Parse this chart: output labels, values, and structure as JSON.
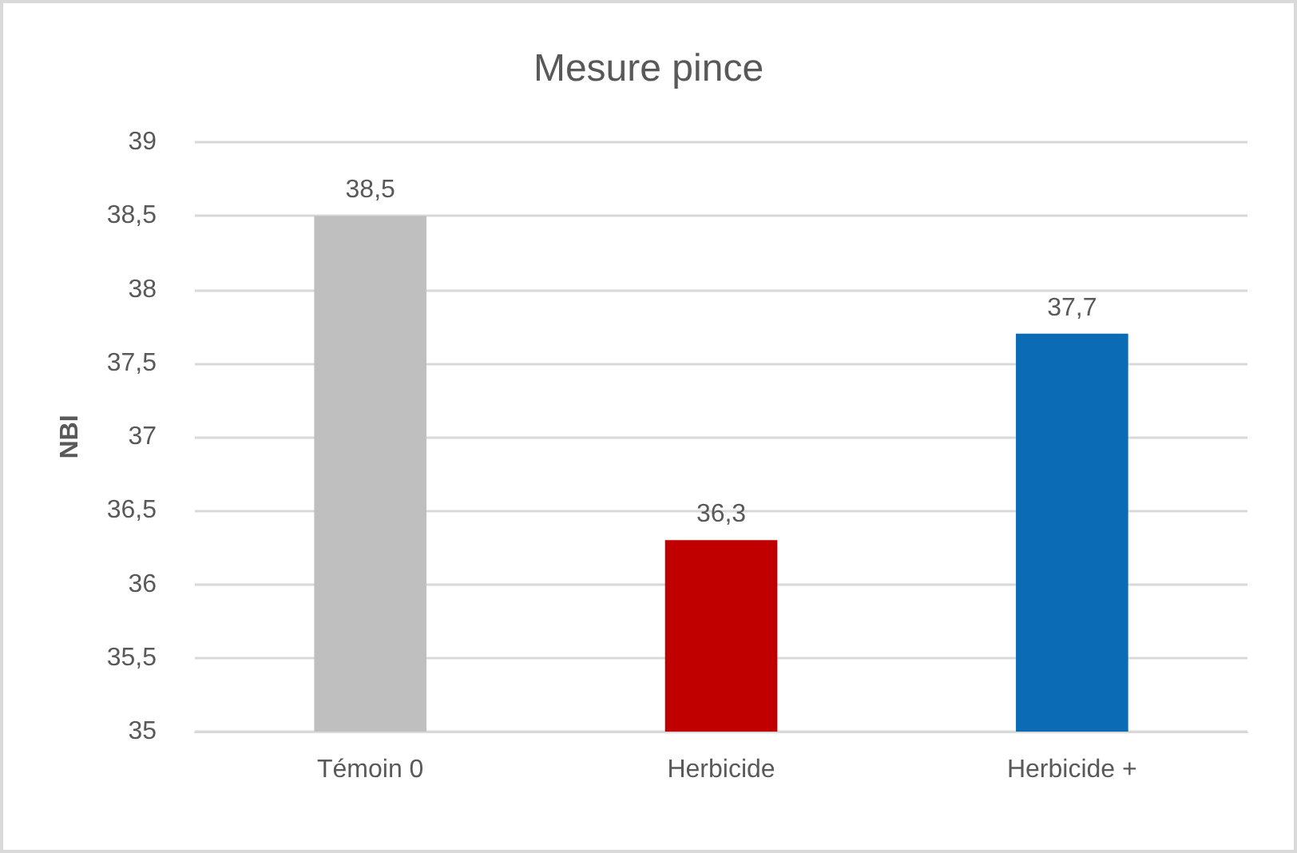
{
  "chart_data": {
    "type": "bar",
    "title": "Mesure pince",
    "ylabel": "NBI",
    "categories": [
      "Témoin 0",
      "Herbicide",
      "Herbicide +"
    ],
    "values": [
      38.5,
      36.3,
      37.7
    ],
    "colors": [
      "#bfbfbf",
      "#c00000",
      "#0b6bb5"
    ],
    "value_labels": [
      "38,5",
      "36,3",
      "37,7"
    ],
    "ylim": [
      35,
      39
    ],
    "yticks": [
      35,
      {
        "value": 35.5,
        "label": "35,5"
      },
      36,
      {
        "value": 36.5,
        "label": "36,5"
      },
      37,
      {
        "value": 37.5,
        "label": "37,5"
      },
      38,
      {
        "value": 38.5,
        "label": "38,5"
      },
      39
    ],
    "grid": "y"
  }
}
